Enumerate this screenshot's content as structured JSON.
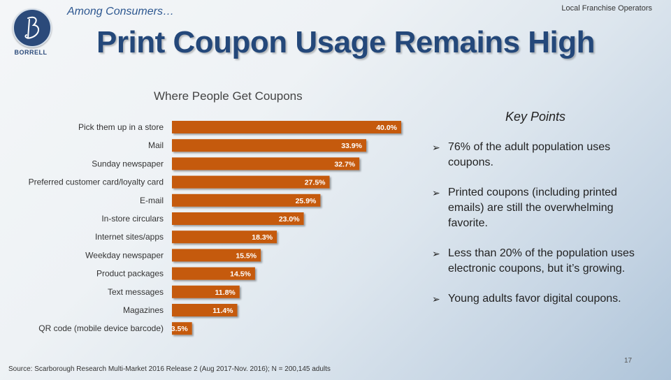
{
  "header": {
    "logo_text": "BORRELL",
    "subtitle": "Among Consumers…",
    "corner_label": "Local Franchise Operators",
    "title": "Print Coupon Usage Remains High"
  },
  "colors": {
    "bar": "#c55a11",
    "title": "#24487a",
    "logo": "#2b4a7a"
  },
  "chart_data": {
    "type": "bar",
    "orientation": "horizontal",
    "title": "Where People Get Coupons",
    "categories": [
      "Pick them up in a store",
      "Mail",
      "Sunday newspaper",
      "Preferred customer card/loyalty card",
      "E-mail",
      "In-store circulars",
      "Internet sites/apps",
      "Weekday newspaper",
      "Product packages",
      "Text messages",
      "Magazines",
      "QR code (mobile device barcode)"
    ],
    "values": [
      40.0,
      33.9,
      32.7,
      27.5,
      25.9,
      23.0,
      18.3,
      15.5,
      14.5,
      11.8,
      11.4,
      3.5
    ],
    "labels": [
      "40.0%",
      "33.9%",
      "32.7%",
      "27.5%",
      "25.9%",
      "23.0%",
      "18.3%",
      "15.5%",
      "14.5%",
      "11.8%",
      "11.4%",
      "3.5%"
    ],
    "xlim": [
      0,
      40
    ],
    "grid": false,
    "legend": "none"
  },
  "key_points": {
    "title": "Key Points",
    "items": [
      "76% of the adult population uses coupons.",
      "Printed coupons (including printed emails) are still the overwhelming favorite.",
      "Less than 20% of the population uses electronic coupons, but it’s growing.",
      "Young adults favor digital coupons."
    ]
  },
  "footer": {
    "source": "Source:  Scarborough Research Multi-Market 2016 Release 2 (Aug 2017-Nov. 2016); N = 200,145 adults",
    "page_number": "17"
  }
}
